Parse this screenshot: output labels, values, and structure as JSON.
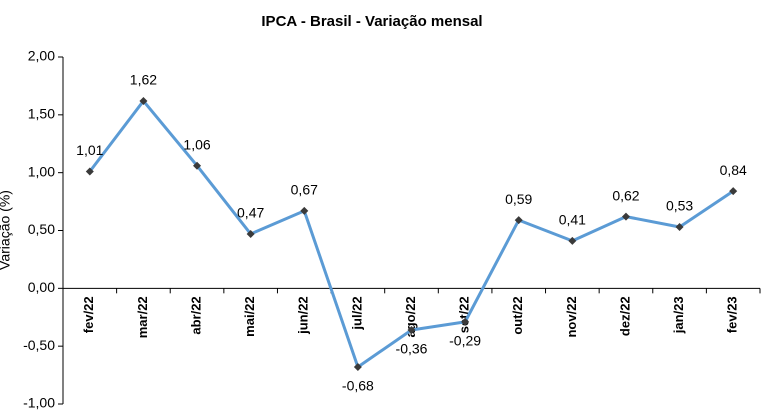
{
  "chart_data": {
    "type": "line",
    "title": "IPCA - Brasil - Variação mensal",
    "y_label": "Variação (%)",
    "categories": [
      "fev/22",
      "mar/22",
      "abr/22",
      "mai/22",
      "jun/22",
      "jul/22",
      "ago/22",
      "set/22",
      "out/22",
      "nov/22",
      "dez/22",
      "jan/23",
      "fev/23"
    ],
    "values": [
      1.01,
      1.62,
      1.06,
      0.47,
      0.67,
      -0.68,
      -0.36,
      -0.29,
      0.59,
      0.41,
      0.62,
      0.53,
      0.84
    ],
    "value_labels": [
      "1,01",
      "1,62",
      "1,06",
      "0,47",
      "0,67",
      "-0,68",
      "-0,36",
      "-0,29",
      "0,59",
      "0,41",
      "0,62",
      "0,53",
      "0,84"
    ],
    "color": "#5b9bd5",
    "marker_color": "#3a3a3a",
    "ylim": [
      -1,
      2
    ],
    "yticks": [
      {
        "value": -1,
        "label": "-1,00"
      },
      {
        "value": -0.5,
        "label": "-0,50"
      },
      {
        "value": 0,
        "label": "0,00"
      },
      {
        "value": 0.5,
        "label": "0,50"
      },
      {
        "value": 1,
        "label": "1,00"
      },
      {
        "value": 1.5,
        "label": "1,50"
      },
      {
        "value": 2,
        "label": "2,00"
      }
    ]
  }
}
